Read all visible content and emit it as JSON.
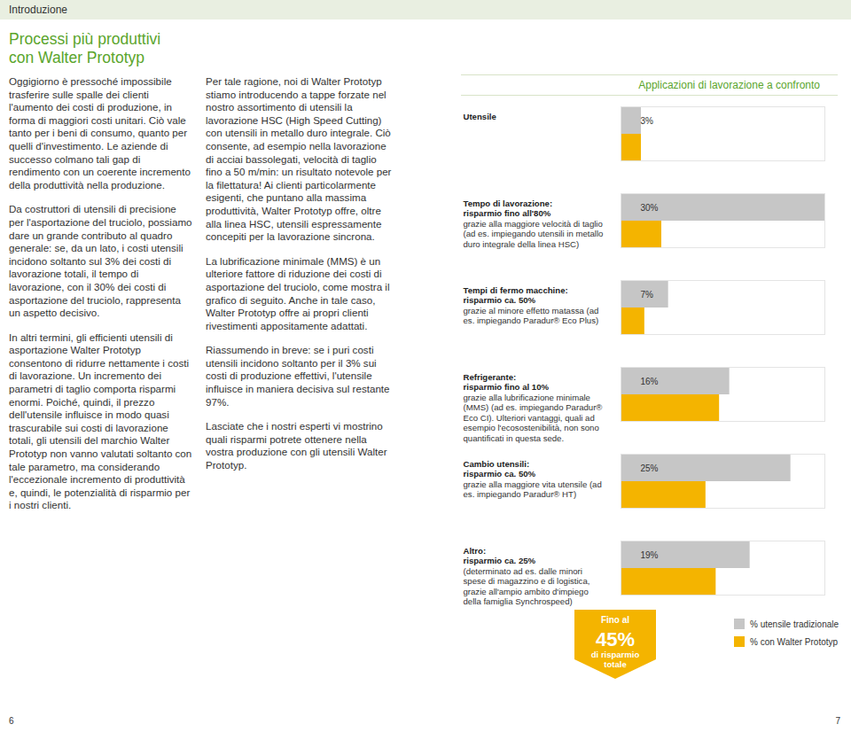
{
  "header": {
    "section": "Introduzione",
    "title": [
      "Processi più produttivi",
      "con Walter Prototyp"
    ]
  },
  "columns": [
    [
      "Oggigiorno è pressoché impossibile trasferire sulle spalle dei clienti l'aumento dei costi di produzione, in forma di maggiori costi unitari. Ciò vale tanto per i beni di consumo, quanto per quelli d'investimento. Le aziende di successo colmano tali gap di rendimento con un coerente incremento della produttività nella produzione.",
      "Da costruttori di utensili di precisione per l'asportazione del truciolo, possiamo dare un grande contributo al quadro generale: se, da un lato, i costi utensili incidono soltanto sul 3% dei costi di lavorazione totali, il tempo di lavorazione, con il 30% dei costi di asportazione del truciolo, rappresenta un aspetto decisivo.",
      "In altri termini, gli efficienti utensili di asportazione Walter Prototyp consentono di ridurre nettamente i costi di lavorazione. Un incremento dei parametri di taglio comporta risparmi enormi. Poiché, quindi, il prezzo dell'utensile influisce in modo quasi trascurabile sui costi di lavorazione totali, gli utensili del marchio Walter Prototyp non vanno valutati soltanto con tale parametro, ma considerando l'eccezionale incremento di produttività e, quindi, le potenzialità di risparmio per i nostri clienti."
    ],
    [
      "Per tale ragione, noi di Walter Prototyp stiamo introducendo a tappe forzate nel nostro assortimento di utensili la lavorazione HSC (High Speed Cutting) con utensili in metallo duro integrale. Ciò consente, ad esempio nella lavorazione di acciai bassolegati, velocità di taglio fino a 50 m/min: un risultato notevole per la filettatura! Ai clienti particolarmente esigenti, che puntano alla massima produttività, Walter Prototyp offre, oltre alla linea HSC, utensili espressamente concepiti per la lavorazione sincrona.",
      "La lubrificazione minimale (MMS) è un ulteriore fattore di riduzione dei costi di asportazione del truciolo, come mostra il grafico di seguito. Anche in tale caso, Walter Prototyp offre ai propri clienti rivestimenti appositamente adattati.",
      "Riassumendo in breve: se i puri costi utensili incidono soltanto per il 3% sui costi di produzione effettivi, l'utensile influisce in maniera decisiva sul restante 97%.",
      "Lasciate che i nostri esperti vi mostrino quali risparmi potrete ottenere nella vostra produzione con gli utensili Walter Prototyp."
    ]
  ],
  "badge": {
    "lines": [
      "Fino al",
      "45%",
      "di risparmio",
      "totale"
    ]
  },
  "page_numbers": [
    "6",
    "7"
  ],
  "chart_data": {
    "type": "bar",
    "orientation": "horizontal",
    "title": "Applicazioni di lavorazione a confronto",
    "categories": [
      "Utensile",
      "Tempo di lavorazione:",
      "Tempi di fermo macchine:",
      "Refrigerante:",
      "Cambio utensili:",
      "Altro:"
    ],
    "annotations": [
      null,
      {
        "saving": "risparmio fino all'80%",
        "text": "grazie alla maggiore velocità di taglio (ad es. impiegando utensili in metallo duro integrale della linea HSC)"
      },
      {
        "saving": "risparmio ca. 50%",
        "text": "grazie al minore effetto matassa (ad es. impiegando Paradur® Eco Plus)"
      },
      {
        "saving": "risparmio fino al 10%",
        "text": "grazie alla lubrificazione minimale (MMS) (ad es. impiegando Paradur® Eco CI). Ulteriori vantaggi, quali ad esempio l'ecosostenibilità, non sono quantificati in questa sede."
      },
      {
        "saving": "risparmio ca. 50%",
        "text": "grazie alla maggiore vita utensile (ad es. impiegando Paradur® HT)"
      },
      {
        "saving": "risparmio ca. 25%",
        "text": "(determinato ad es. dalle minori spese di magazzino e di logistica, grazie all'ampio ambito d'impiego della famiglia Synchrospeed)"
      }
    ],
    "series": [
      {
        "name": "% utensile tradizionale",
        "color": "#c6c6c6",
        "values": [
          3,
          30,
          7,
          16,
          25,
          19
        ],
        "value_labels": [
          "3%",
          "30%",
          "7%",
          "16%",
          "25%",
          "19%"
        ]
      },
      {
        "name": "% con Walter Prototyp",
        "color": "#f4b400",
        "values": [
          3,
          6,
          3.5,
          14.5,
          12.5,
          14
        ]
      }
    ],
    "xlim": [
      0,
      30
    ],
    "tick_labels": false,
    "data_labels": true,
    "grid": false,
    "legend": "bottom-right"
  }
}
